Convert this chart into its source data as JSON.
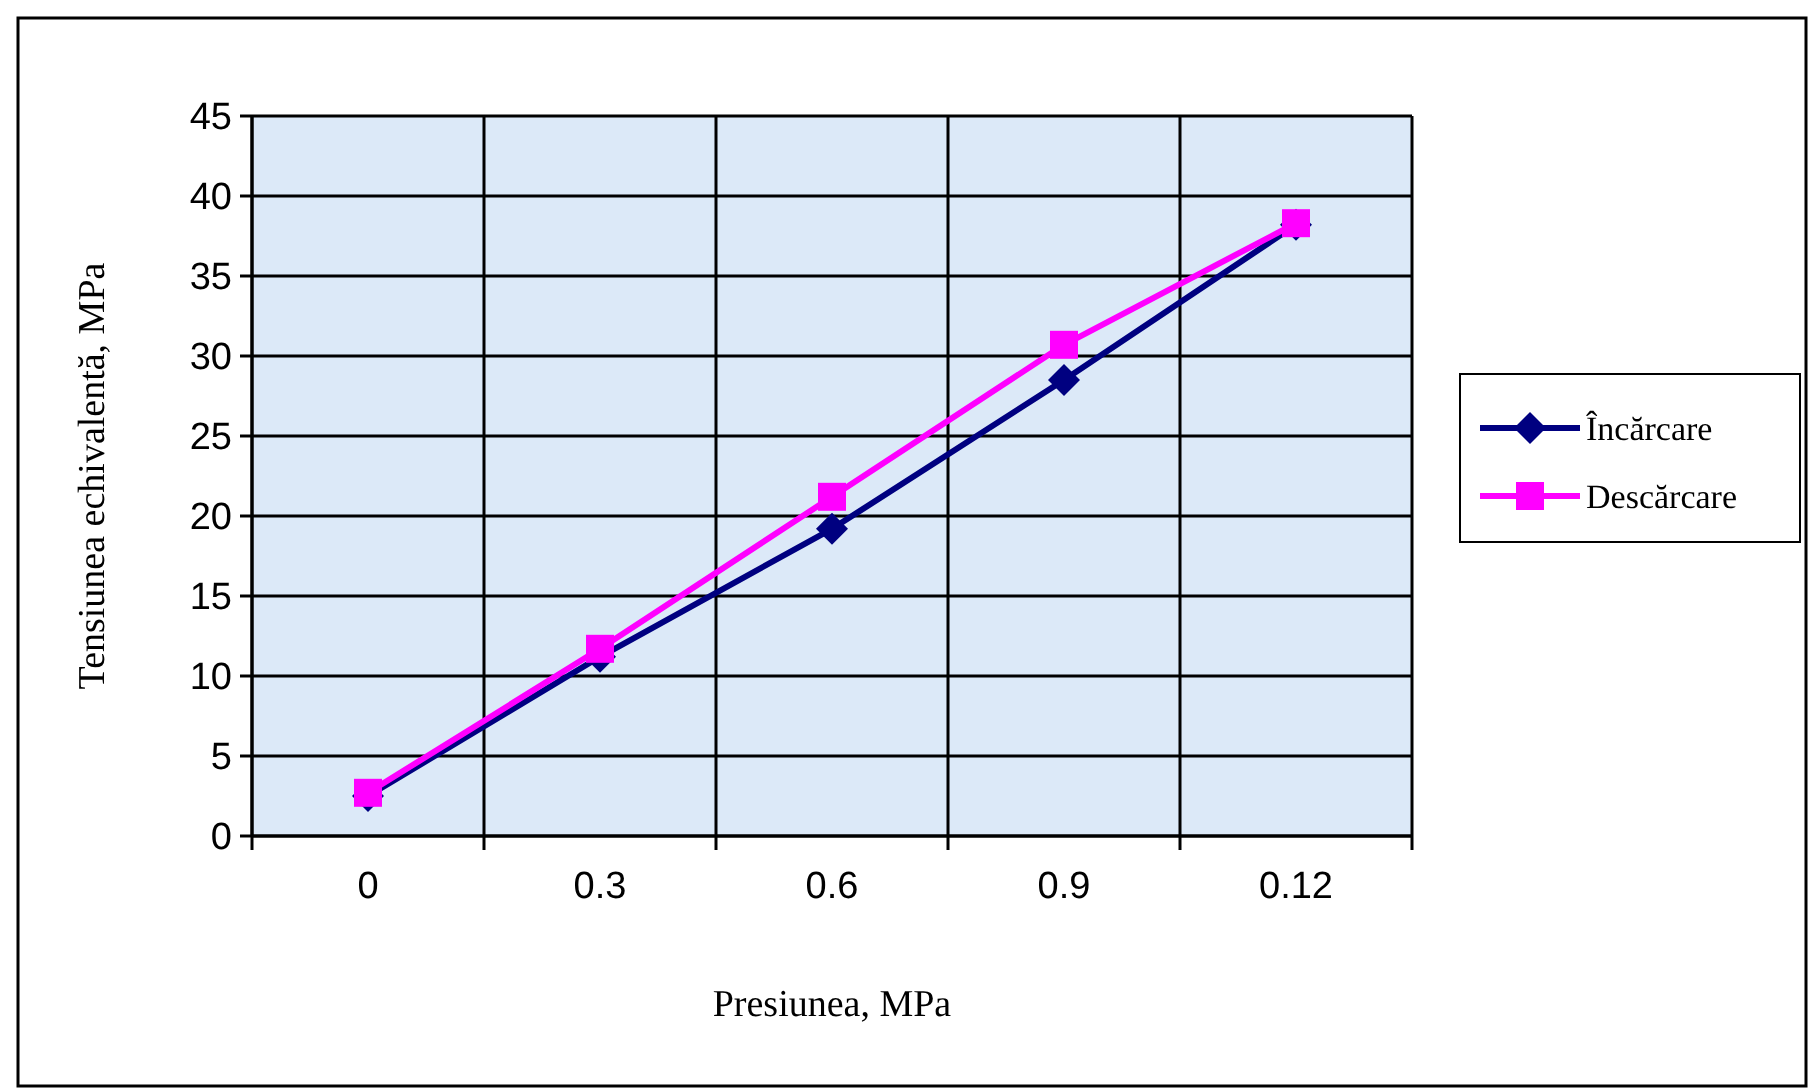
{
  "chart_data": {
    "type": "line",
    "xlabel": "Presiunea, MPa",
    "ylabel": "Tensiunea echivalentă, MPa",
    "categories": [
      "0",
      "0.3",
      "0.6",
      "0.9",
      "0.12"
    ],
    "series": [
      {
        "name": "Încărcare",
        "color": "#000080",
        "marker": "diamond",
        "values": [
          2.5,
          11.2,
          19.2,
          28.5,
          38.2
        ]
      },
      {
        "name": "Descărcare",
        "color": "#ff00ff",
        "marker": "square",
        "values": [
          2.7,
          11.7,
          21.2,
          30.7,
          38.3
        ]
      }
    ],
    "ylim": [
      0,
      45
    ],
    "yticks": [
      0,
      5,
      10,
      15,
      20,
      25,
      30,
      35,
      40,
      45
    ],
    "grid": true,
    "legend": "right"
  }
}
